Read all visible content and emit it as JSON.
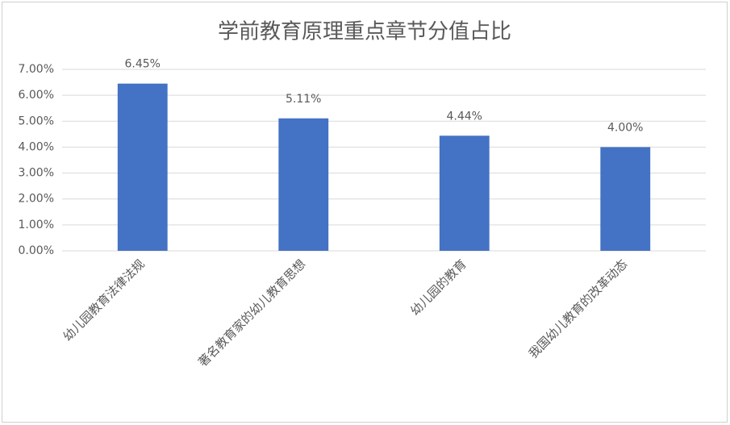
{
  "chart_data": {
    "type": "bar",
    "title": "学前教育原理重点章节分值占比",
    "categories": [
      "幼儿园教育法律法规",
      "著名教育家的幼儿教育思想",
      "幼儿园的教育",
      "我国幼儿教育的改革动态"
    ],
    "values": [
      6.45,
      5.11,
      4.44,
      4.0
    ],
    "value_labels": [
      "6.45%",
      "5.11%",
      "4.44%",
      "4.00%"
    ],
    "color": "#4472c4",
    "ylim": [
      0,
      7
    ],
    "yticks": [
      {
        "value": 0,
        "label": "0.00%"
      },
      {
        "value": 1,
        "label": "1.00%"
      },
      {
        "value": 2,
        "label": "2.00%"
      },
      {
        "value": 3,
        "label": "3.00%"
      },
      {
        "value": 4,
        "label": "4.00%"
      },
      {
        "value": 5,
        "label": "5.00%"
      },
      {
        "value": 6,
        "label": "6.00%"
      },
      {
        "value": 7,
        "label": "7.00%"
      }
    ],
    "grid": true
  }
}
